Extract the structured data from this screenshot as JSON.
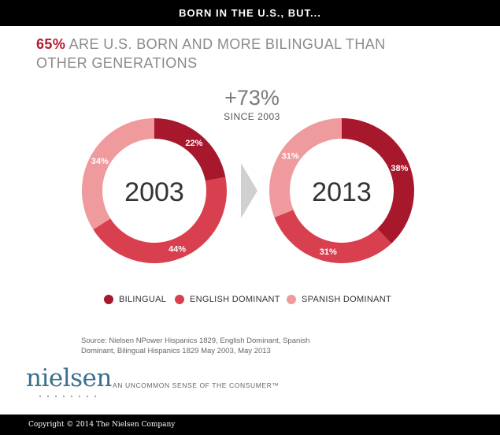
{
  "header": {
    "title": "BORN IN THE U.S., BUT..."
  },
  "headline": {
    "highlight": "65%",
    "text": " ARE U.S. BORN AND MORE BILINGUAL THAN OTHER GENERATIONS"
  },
  "growth": {
    "value": "+73%",
    "label": "SINCE 2003"
  },
  "colors": {
    "bilingual": "#a8182d",
    "english_dominant": "#d8404f",
    "spanish_dominant": "#ef9a9c",
    "accent": "#b5192f",
    "arrow": "#d0d0d0"
  },
  "chart_data": [
    {
      "type": "pie",
      "title": "2003",
      "categories": [
        "BILINGUAL",
        "ENGLISH DOMINANT",
        "SPANISH DOMINANT"
      ],
      "values": [
        22,
        44,
        34
      ],
      "data_labels": [
        "22%",
        "44%",
        "34%"
      ]
    },
    {
      "type": "pie",
      "title": "2013",
      "categories": [
        "BILINGUAL",
        "ENGLISH DOMINANT",
        "SPANISH DOMINANT"
      ],
      "values": [
        38,
        31,
        31
      ],
      "data_labels": [
        "38%",
        "31%",
        "31%"
      ]
    }
  ],
  "legend": {
    "items": [
      {
        "label": "BILINGUAL",
        "color": "#a8182d"
      },
      {
        "label": "ENGLISH DOMINANT",
        "color": "#d8404f"
      },
      {
        "label": "SPANISH DOMINANT",
        "color": "#ef9a9c"
      }
    ]
  },
  "source": {
    "text": "Source: Nielsen NPower Hispanics 1829, English Dominant, Spanish Dominant, Bilingual Hispanics 1829 May 2003, May 2013"
  },
  "branding": {
    "logo": "nielsen",
    "tagline": "AN UNCOMMON SENSE OF THE CONSUMER™"
  },
  "footer": {
    "copyright": "Copyright © 2014 The Nielsen Company"
  }
}
